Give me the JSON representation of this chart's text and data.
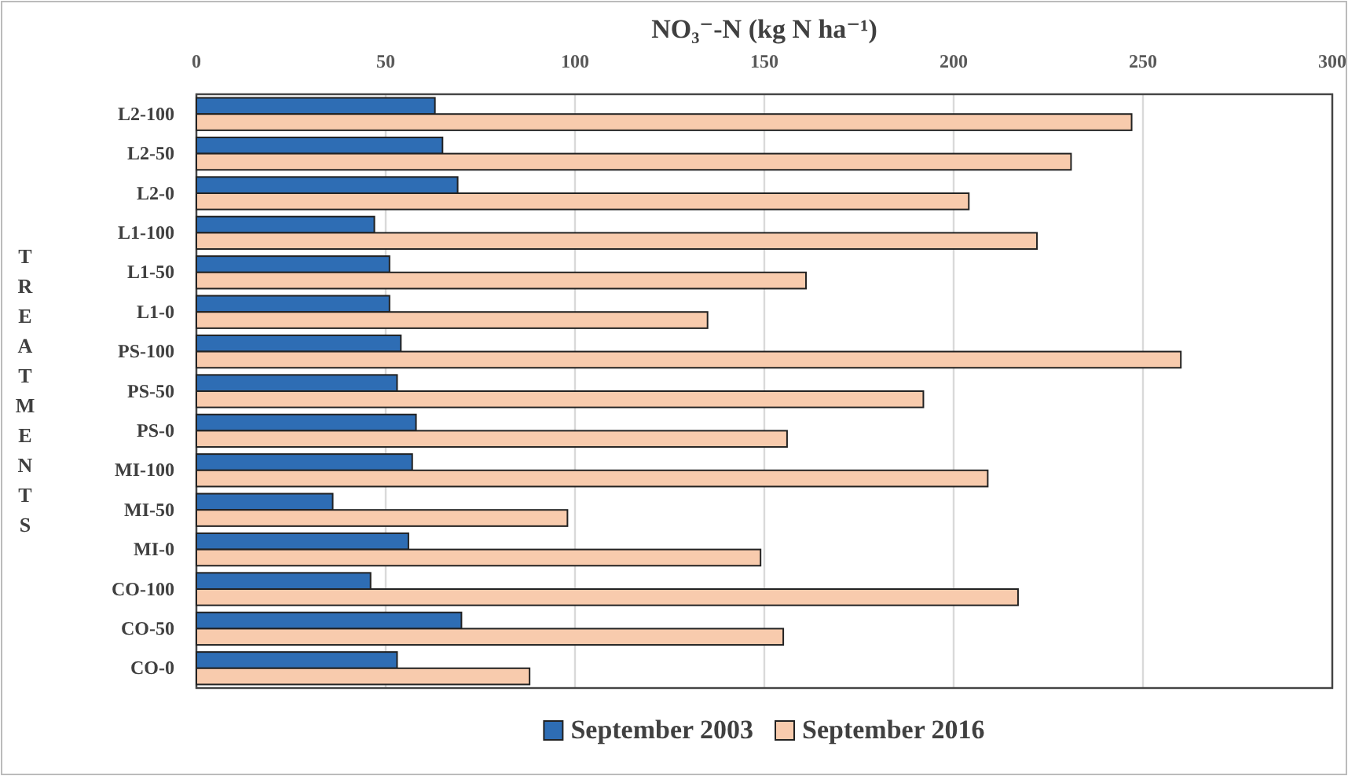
{
  "chart_data": {
    "type": "bar",
    "orientation": "horizontal",
    "xlabel": "NO₃⁻-N (kg N ha⁻¹)",
    "ylabel": "TREATMENTS",
    "categories": [
      "L2-100",
      "L2-50",
      "L2-0",
      "L1-100",
      "L1-50",
      "L1-0",
      "PS-100",
      "PS-50",
      "PS-0",
      "MI-100",
      "MI-50",
      "MI-0",
      "CO-100",
      "CO-50",
      "CO-0"
    ],
    "series": [
      {
        "name": "September 2003",
        "color": "#2e6db4",
        "values": [
          63,
          65,
          69,
          47,
          51,
          51,
          54,
          53,
          58,
          57,
          36,
          56,
          46,
          70,
          53
        ]
      },
      {
        "name": "September 2016",
        "color": "#f8cbad",
        "values": [
          247,
          231,
          204,
          222,
          161,
          135,
          260,
          192,
          156,
          209,
          98,
          149,
          217,
          155,
          88
        ]
      }
    ],
    "xlim": [
      0,
      300
    ],
    "xticks": [
      0,
      50,
      100,
      150,
      200,
      250,
      300
    ],
    "grid": "x",
    "legend": "bottom"
  }
}
